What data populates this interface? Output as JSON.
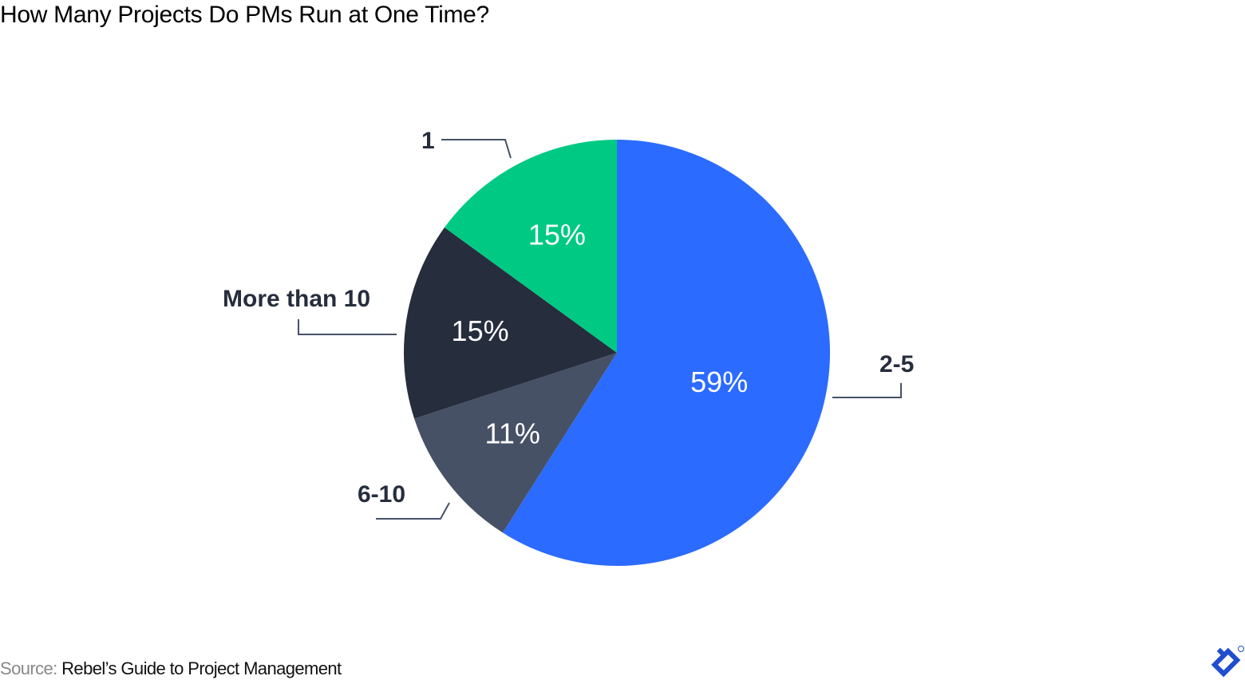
{
  "title": "How Many Projects Do PMs Run at One Time?",
  "source": {
    "label": "Source:",
    "text": "Rebel’s Guide to Project Management"
  },
  "chart_data": {
    "type": "pie",
    "title": "How Many Projects Do PMs Run at One Time?",
    "categories": [
      "2-5",
      "6-10",
      "More than 10",
      "1"
    ],
    "values": [
      59,
      11,
      15,
      15
    ],
    "value_labels": [
      "59%",
      "11%",
      "15%",
      "15%"
    ],
    "colors": [
      "#2b6bff",
      "#465166",
      "#262d3d",
      "#00c983"
    ],
    "start_angle": "top, clockwise",
    "source": "Rebel’s Guide to Project Management"
  },
  "colors": {
    "label_text": "#262d3d",
    "leader_line": "#465166",
    "logo": "#204ecf"
  }
}
